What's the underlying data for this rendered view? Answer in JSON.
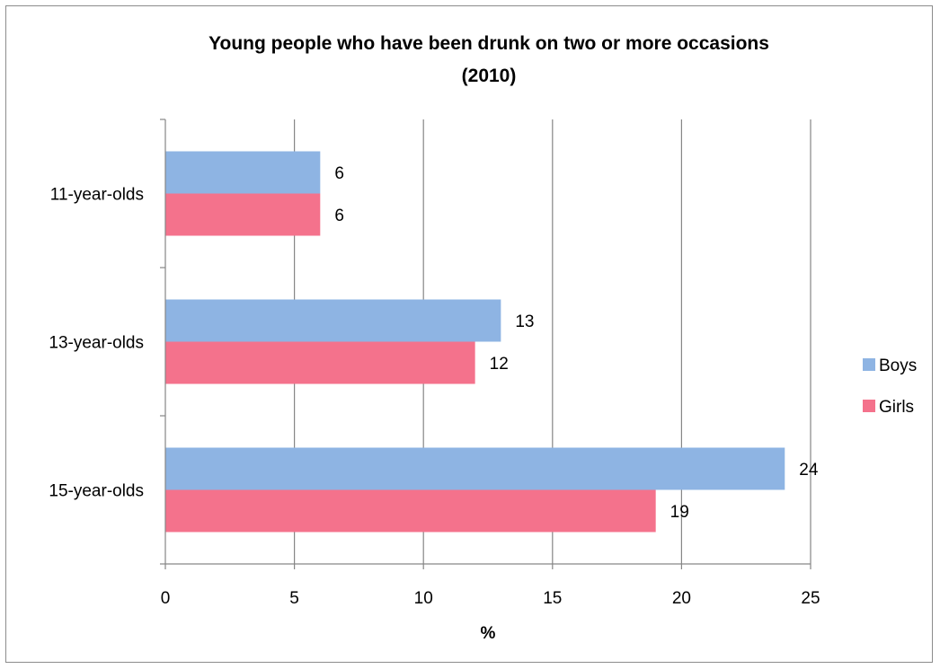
{
  "chart_data": {
    "type": "bar",
    "orientation": "horizontal",
    "title": "Young people who have been drunk on two or more occasions (2010)",
    "title_lines": [
      "Young people who have been drunk on two or more occasions",
      "(2010)"
    ],
    "categories": [
      "11-year-olds",
      "13-year-olds",
      "15-year-olds"
    ],
    "series": [
      {
        "name": "Boys",
        "values": [
          6,
          13,
          24
        ],
        "color": "#8eb4e3"
      },
      {
        "name": "Girls",
        "values": [
          6,
          12,
          19
        ],
        "color": "#f4728c"
      }
    ],
    "xlabel": "%",
    "ylabel": "",
    "xlim": [
      0,
      25
    ],
    "xticks": [
      0,
      5,
      10,
      15,
      20,
      25
    ],
    "grid": "vertical major gridlines",
    "legend_position": "right",
    "data_labels": true
  }
}
